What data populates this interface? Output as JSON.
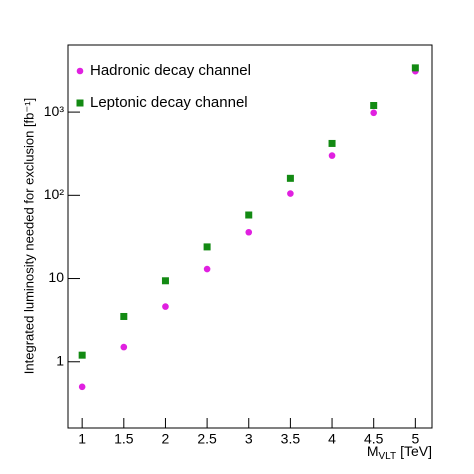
{
  "chart_data": {
    "type": "scatter",
    "y_label": "Integrated luminosity needed for exclusion [fb⁻¹]",
    "x_label_main": "M",
    "x_label_sub": "VLT",
    "x_label_unit": "[TeV]",
    "log_y": true,
    "legend": "upper left",
    "xlim": [
      0.83,
      5.2
    ],
    "xticks": [
      1,
      1.5,
      2,
      2.5,
      3,
      3.5,
      4,
      4.5,
      5
    ],
    "ylim": [
      0.16,
      6400
    ],
    "yticks": [
      1,
      10,
      {
        "value": 100,
        "label": "10²"
      },
      {
        "value": 1000,
        "label": "10³"
      }
    ],
    "series": [
      {
        "name": "Hadronic decay channel",
        "color": "#e020e0",
        "marker": "circle",
        "x": [
          1,
          1.5,
          2,
          2.5,
          3,
          3.5,
          4,
          4.5,
          5
        ],
        "values": [
          0.5,
          1.5,
          4.6,
          13,
          36,
          105,
          300,
          980,
          3100
        ]
      },
      {
        "name": "Leptonic decay channel",
        "color": "#138a13",
        "marker": "square",
        "x": [
          1,
          1.5,
          2,
          2.5,
          3,
          3.5,
          4,
          4.5,
          5
        ],
        "values": [
          1.2,
          3.5,
          9.4,
          24,
          58,
          160,
          420,
          1200,
          3400
        ]
      }
    ]
  }
}
